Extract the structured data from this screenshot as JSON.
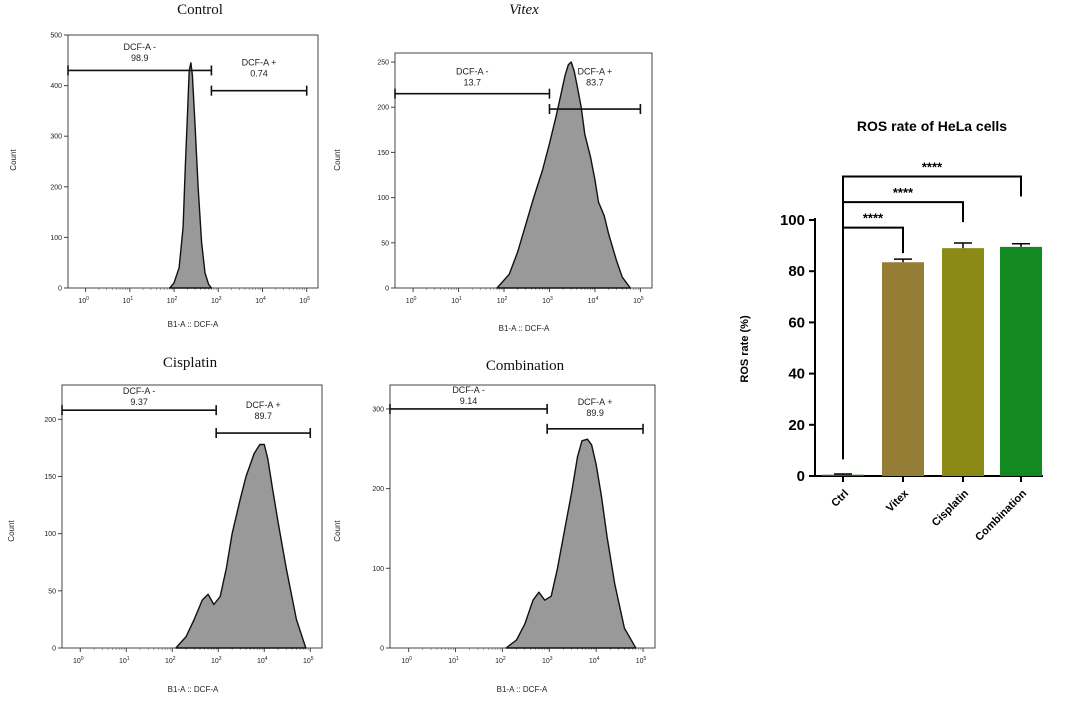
{
  "chart_data": [
    {
      "type": "area",
      "title": "Control",
      "title_italic": false,
      "xlabel": "B1-A :: DCF-A",
      "ylabel": "Count",
      "x_scale": "log",
      "x_ticks": [
        1,
        10,
        100,
        1000,
        10000,
        100000
      ],
      "ylim": [
        0,
        500
      ],
      "y_ticks": [
        0,
        100,
        200,
        300,
        400,
        500
      ],
      "y_tick_labels": [
        "0",
        "100",
        "200",
        "300",
        "400",
        "500"
      ],
      "histogram": {
        "x": [
          80,
          100,
          130,
          160,
          180,
          200,
          220,
          240,
          260,
          300,
          350,
          420,
          500,
          600,
          700
        ],
        "y": [
          0,
          10,
          40,
          120,
          240,
          340,
          430,
          445,
          420,
          320,
          200,
          90,
          30,
          8,
          0
        ]
      },
      "gates": [
        {
          "name": "DCF-A -",
          "value": "98.9",
          "range": [
            0.4,
            700
          ],
          "y": 430,
          "label_y": 470
        },
        {
          "name": "DCF-A +",
          "value": "0.74",
          "range": [
            700,
            100000
          ],
          "y": 390,
          "label_y": 440
        }
      ]
    },
    {
      "type": "area",
      "title": "Vitex",
      "title_italic": true,
      "xlabel": "B1-A :: DCF-A",
      "ylabel": "Count",
      "x_scale": "log",
      "x_ticks": [
        1,
        10,
        100,
        1000,
        10000,
        100000
      ],
      "ylim": [
        0,
        260
      ],
      "y_ticks": [
        0,
        50,
        100,
        150,
        200,
        250
      ],
      "y_tick_labels": [
        "0",
        "50",
        "100",
        "150",
        "200",
        "250"
      ],
      "histogram": {
        "x": [
          70,
          130,
          200,
          300,
          450,
          700,
          1000,
          1400,
          1800,
          2200,
          2600,
          3000,
          3500,
          4200,
          5000,
          6000,
          8000,
          10000,
          12000,
          16000,
          20000,
          30000,
          40000,
          60000
        ],
        "y": [
          0,
          15,
          40,
          70,
          100,
          130,
          160,
          190,
          215,
          235,
          247,
          250,
          240,
          220,
          200,
          170,
          145,
          120,
          95,
          80,
          60,
          30,
          12,
          0
        ]
      },
      "gates": [
        {
          "name": "DCF-A -",
          "value": "13.7",
          "range": [
            0.4,
            1000
          ],
          "y": 215,
          "label_y": 236
        },
        {
          "name": "DCF-A +",
          "value": "83.7",
          "range": [
            1000,
            100000
          ],
          "y": 198,
          "label_y": 236
        }
      ]
    },
    {
      "type": "area",
      "title": "Cisplatin",
      "title_italic": false,
      "xlabel": "B1-A :: DCF-A",
      "ylabel": "Count",
      "x_scale": "log",
      "x_ticks": [
        1,
        10,
        100,
        1000,
        10000,
        100000
      ],
      "ylim": [
        0,
        230
      ],
      "y_ticks": [
        0,
        50,
        100,
        150,
        200
      ],
      "y_tick_labels": [
        "0",
        "50",
        "100",
        "150",
        "200"
      ],
      "histogram": {
        "x": [
          120,
          200,
          300,
          450,
          600,
          800,
          1100,
          1500,
          2000,
          3000,
          4000,
          6000,
          8000,
          10000,
          12000,
          15000,
          20000,
          30000,
          50000,
          80000
        ],
        "y": [
          0,
          10,
          25,
          42,
          47,
          38,
          45,
          70,
          100,
          130,
          150,
          170,
          178,
          178,
          165,
          140,
          110,
          70,
          25,
          0
        ]
      },
      "gates": [
        {
          "name": "DCF-A -",
          "value": "9.37",
          "range": [
            0.4,
            900
          ],
          "y": 208,
          "label_y": 222
        },
        {
          "name": "DCF-A +",
          "value": "89.7",
          "range": [
            900,
            100000
          ],
          "y": 188,
          "label_y": 210
        }
      ]
    },
    {
      "type": "area",
      "title": "Combination",
      "title_italic": false,
      "xlabel": "B1-A :: DCF-A",
      "ylabel": "Count",
      "x_scale": "log",
      "x_ticks": [
        1,
        10,
        100,
        1000,
        10000,
        100000
      ],
      "ylim": [
        0,
        330
      ],
      "y_ticks": [
        0,
        100,
        200,
        300
      ],
      "y_tick_labels": [
        "0",
        "100",
        "200",
        "300"
      ],
      "histogram": {
        "x": [
          120,
          200,
          300,
          450,
          600,
          800,
          1100,
          1500,
          2000,
          3000,
          4000,
          5000,
          6500,
          8000,
          10000,
          13000,
          17000,
          25000,
          40000,
          70000
        ],
        "y": [
          0,
          10,
          30,
          60,
          70,
          60,
          65,
          100,
          140,
          195,
          240,
          260,
          262,
          255,
          230,
          190,
          140,
          80,
          25,
          0
        ]
      },
      "gates": [
        {
          "name": "DCF-A -",
          "value": "9.14",
          "range": [
            0.4,
            900
          ],
          "y": 300,
          "label_y": 320
        },
        {
          "name": "DCF-A +",
          "value": "89.9",
          "range": [
            900,
            100000
          ],
          "y": 275,
          "label_y": 305
        }
      ]
    },
    {
      "type": "bar",
      "title": "ROS rate of HeLa cells",
      "xlabel": "",
      "ylabel": "ROS rate (%)",
      "categories": [
        "Ctrl",
        "Vitex",
        "Cisplatin",
        "Combination"
      ],
      "values": [
        0.5,
        83.5,
        89.0,
        89.5
      ],
      "errors": [
        0.3,
        1.2,
        2.0,
        1.2
      ],
      "colors": [
        "#1a6d1a",
        "#967d35",
        "#8a8a14",
        "#138a1f"
      ],
      "ylim": [
        0,
        100
      ],
      "y_ticks": [
        0,
        20,
        40,
        60,
        80,
        100
      ],
      "y_tick_labels": [
        "0",
        "20",
        "40",
        "60",
        "80",
        "100"
      ],
      "significance": [
        {
          "from": 0,
          "to": 1,
          "label": "****",
          "level": 97
        },
        {
          "from": 0,
          "to": 2,
          "label": "****",
          "level": 107
        },
        {
          "from": 0,
          "to": 3,
          "label": "****",
          "level": 117
        }
      ]
    }
  ],
  "colors": {
    "histogram_fill": "#999999",
    "line": "#111111"
  }
}
